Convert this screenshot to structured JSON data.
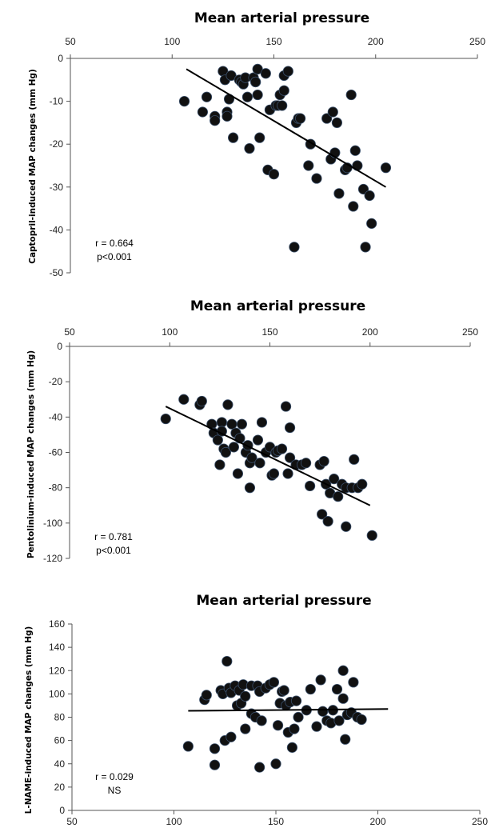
{
  "chart_data": [
    {
      "type": "scatter",
      "title": "Mean arterial pressure",
      "xlabel": "",
      "ylabel": "Captopril-induced  MAP changes (mm Hg)",
      "xlim": [
        50,
        250
      ],
      "ylim": [
        -50,
        0
      ],
      "x_axis_position": "top",
      "x_ticks": [
        "50",
        "100",
        "150",
        "200",
        "250"
      ],
      "y_ticks": [
        "0",
        "-10",
        "-20",
        "-30",
        "-40",
        "-50"
      ],
      "grid": false,
      "annotation": [
        "r = 0.664",
        "p<0.001"
      ],
      "trendline": {
        "x": [
          107,
          205
        ],
        "y": [
          -2.5,
          -30
        ]
      },
      "points": [
        [
          106,
          -10
        ],
        [
          115,
          -12.5
        ],
        [
          117,
          -9
        ],
        [
          121,
          -13.5
        ],
        [
          121,
          -14.5
        ],
        [
          125,
          -3
        ],
        [
          126,
          -5
        ],
        [
          127,
          -12.5
        ],
        [
          127,
          -13.5
        ],
        [
          128,
          -9.5
        ],
        [
          129,
          -4
        ],
        [
          130,
          -18.5
        ],
        [
          133,
          -5
        ],
        [
          134,
          -5.5
        ],
        [
          135,
          -6
        ],
        [
          136,
          -4.5
        ],
        [
          137,
          -9
        ],
        [
          138,
          -21
        ],
        [
          140,
          -4.5
        ],
        [
          141,
          -5.5
        ],
        [
          141,
          -5.5
        ],
        [
          142,
          -2.5
        ],
        [
          142,
          -8.5
        ],
        [
          143,
          -18.5
        ],
        [
          146,
          -3.5
        ],
        [
          147,
          -26
        ],
        [
          148,
          -12
        ],
        [
          150,
          -27
        ],
        [
          151,
          -11
        ],
        [
          152,
          -11
        ],
        [
          153,
          -8.5
        ],
        [
          154,
          -11
        ],
        [
          155,
          -7.5
        ],
        [
          155,
          -4
        ],
        [
          157,
          -3
        ],
        [
          160,
          -44
        ],
        [
          161,
          -15
        ],
        [
          162,
          -14
        ],
        [
          163,
          -14
        ],
        [
          167,
          -25
        ],
        [
          168,
          -20
        ],
        [
          171,
          -28
        ],
        [
          176,
          -14
        ],
        [
          178,
          -23.5
        ],
        [
          179,
          -12.5
        ],
        [
          180,
          -22
        ],
        [
          181,
          -15
        ],
        [
          182,
          -31.5
        ],
        [
          185,
          -26
        ],
        [
          186,
          -25.5
        ],
        [
          188,
          -8.5
        ],
        [
          189,
          -34.5
        ],
        [
          190,
          -21.5
        ],
        [
          191,
          -25
        ],
        [
          194,
          -30.5
        ],
        [
          195,
          -44
        ],
        [
          197,
          -32
        ],
        [
          198,
          -38.5
        ],
        [
          205,
          -25.5
        ]
      ]
    },
    {
      "type": "scatter",
      "title": "Mean arterial pressure",
      "xlabel": "",
      "ylabel": "Pentolinium-induced  MAP changes (mm Hg)",
      "xlim": [
        50,
        250
      ],
      "ylim": [
        -120,
        0
      ],
      "x_axis_position": "top",
      "x_ticks": [
        "50",
        "100",
        "150",
        "200",
        "250"
      ],
      "y_ticks": [
        "0",
        "-20",
        "-40",
        "-60",
        "-80",
        "-100",
        "-120"
      ],
      "grid": false,
      "annotation": [
        "r = 0.781",
        "p<0.001"
      ],
      "trendline": {
        "x": [
          98,
          200
        ],
        "y": [
          -34,
          -90
        ]
      },
      "points": [
        [
          98,
          -41
        ],
        [
          107,
          -30
        ],
        [
          115,
          -33
        ],
        [
          116,
          -31
        ],
        [
          121,
          -44
        ],
        [
          122,
          -49
        ],
        [
          124,
          -53
        ],
        [
          125,
          -67
        ],
        [
          126,
          -43
        ],
        [
          126,
          -48
        ],
        [
          127,
          -58
        ],
        [
          128,
          -60
        ],
        [
          129,
          -33
        ],
        [
          131,
          -44
        ],
        [
          132,
          -57
        ],
        [
          133,
          -49
        ],
        [
          134,
          -72
        ],
        [
          135,
          -52
        ],
        [
          136,
          -44
        ],
        [
          138,
          -60
        ],
        [
          139,
          -56
        ],
        [
          140,
          -66
        ],
        [
          140,
          -80
        ],
        [
          141,
          -63
        ],
        [
          144,
          -53
        ],
        [
          145,
          -66
        ],
        [
          146,
          -43
        ],
        [
          148,
          -60
        ],
        [
          150,
          -57
        ],
        [
          151,
          -73
        ],
        [
          152,
          -72
        ],
        [
          153,
          -60
        ],
        [
          154,
          -59
        ],
        [
          156,
          -58
        ],
        [
          158,
          -34
        ],
        [
          159,
          -72
        ],
        [
          160,
          -63
        ],
        [
          160,
          -46
        ],
        [
          163,
          -67
        ],
        [
          166,
          -67
        ],
        [
          168,
          -66
        ],
        [
          170,
          -79
        ],
        [
          175,
          -67
        ],
        [
          176,
          -95
        ],
        [
          177,
          -65
        ],
        [
          178,
          -78
        ],
        [
          179,
          -99
        ],
        [
          180,
          -83
        ],
        [
          182,
          -75
        ],
        [
          184,
          -85
        ],
        [
          186,
          -78
        ],
        [
          188,
          -80
        ],
        [
          188,
          -102
        ],
        [
          191,
          -80
        ],
        [
          192,
          -64
        ],
        [
          194,
          -80
        ],
        [
          196,
          -78
        ],
        [
          201,
          -107
        ]
      ]
    },
    {
      "type": "scatter",
      "title": "Mean arterial pressure",
      "xlabel": "",
      "ylabel": "L-NAME-induced MAP changes (mm Hg)",
      "xlim": [
        50,
        250
      ],
      "ylim": [
        0,
        160
      ],
      "x_axis_position": "bottom",
      "x_ticks": [
        "50",
        "100",
        "150",
        "200",
        "250"
      ],
      "y_ticks": [
        "0",
        "20",
        "40",
        "60",
        "80",
        "100",
        "120",
        "140",
        "160"
      ],
      "grid": false,
      "annotation": [
        "r = 0.029",
        "NS"
      ],
      "trendline": {
        "x": [
          107,
          205
        ],
        "y": [
          85.5,
          87
        ]
      },
      "points": [
        [
          107,
          55
        ],
        [
          115,
          95
        ],
        [
          116,
          99
        ],
        [
          120,
          53
        ],
        [
          120,
          39
        ],
        [
          123,
          103
        ],
        [
          124,
          100
        ],
        [
          125,
          60
        ],
        [
          126,
          128
        ],
        [
          127,
          105
        ],
        [
          128,
          101
        ],
        [
          128,
          63
        ],
        [
          130,
          107
        ],
        [
          131,
          90
        ],
        [
          132,
          103
        ],
        [
          133,
          92
        ],
        [
          134,
          108
        ],
        [
          135,
          98
        ],
        [
          135,
          70
        ],
        [
          138,
          107
        ],
        [
          138,
          83
        ],
        [
          140,
          80
        ],
        [
          141,
          107
        ],
        [
          142,
          102
        ],
        [
          142,
          37
        ],
        [
          143,
          77
        ],
        [
          145,
          105
        ],
        [
          147,
          108
        ],
        [
          149,
          110
        ],
        [
          150,
          40
        ],
        [
          151,
          73
        ],
        [
          152,
          92
        ],
        [
          153,
          102
        ],
        [
          154,
          103
        ],
        [
          155,
          90
        ],
        [
          156,
          67
        ],
        [
          157,
          93
        ],
        [
          158,
          54
        ],
        [
          159,
          70
        ],
        [
          160,
          94
        ],
        [
          161,
          80
        ],
        [
          165,
          86
        ],
        [
          167,
          104
        ],
        [
          170,
          72
        ],
        [
          172,
          112
        ],
        [
          173,
          85
        ],
        [
          175,
          77
        ],
        [
          177,
          75
        ],
        [
          178,
          86
        ],
        [
          180,
          104
        ],
        [
          181,
          77
        ],
        [
          183,
          96
        ],
        [
          183,
          120
        ],
        [
          184,
          61
        ],
        [
          185,
          82
        ],
        [
          187,
          84
        ],
        [
          188,
          110
        ],
        [
          190,
          80
        ],
        [
          192,
          78
        ]
      ]
    }
  ]
}
